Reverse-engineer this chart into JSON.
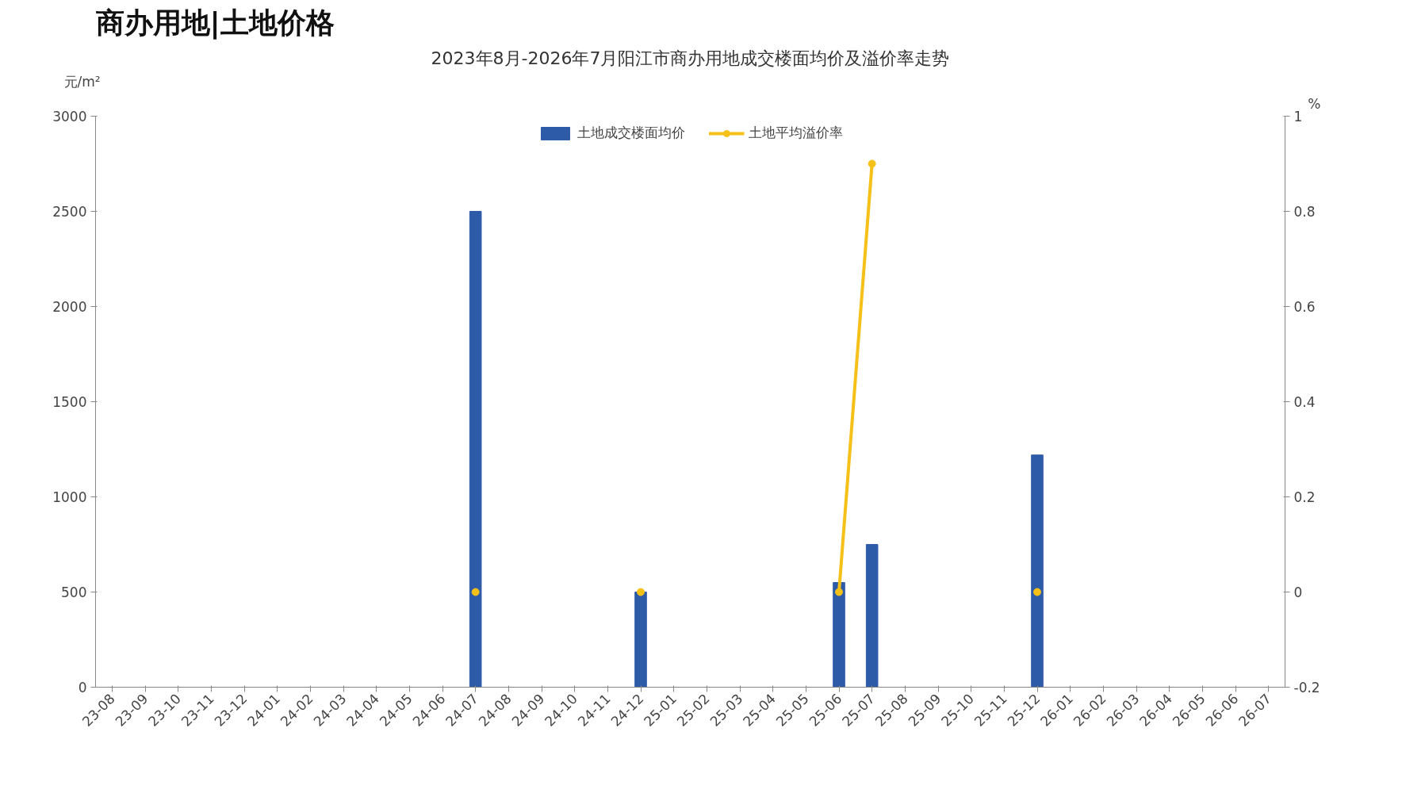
{
  "chart_data": {
    "type": "bar",
    "title": "商办用地|土地价格",
    "subtitle": "2023年8月-2026年7月阳江市商办用地成交楼面均价及溢价率走势",
    "ylabel": "元/m²",
    "y2label": "%",
    "categories": [
      "23-08",
      "23-09",
      "23-10",
      "23-11",
      "23-12",
      "24-01",
      "24-02",
      "24-03",
      "24-04",
      "24-05",
      "24-06",
      "24-07",
      "24-08",
      "24-09",
      "24-10",
      "24-11",
      "24-12",
      "25-01",
      "25-02",
      "25-03",
      "25-04",
      "25-05",
      "25-06",
      "25-07",
      "25-08",
      "25-09",
      "25-10",
      "25-11",
      "25-12",
      "26-01",
      "26-02",
      "26-03",
      "26-04",
      "26-05",
      "26-06",
      "26-07"
    ],
    "series": [
      {
        "name": "土地成交楼面均价",
        "color": "#2e5ba8",
        "values": [
          null,
          null,
          null,
          null,
          null,
          null,
          null,
          null,
          null,
          null,
          null,
          2500,
          null,
          null,
          null,
          null,
          500,
          null,
          null,
          null,
          null,
          null,
          550,
          750,
          null,
          null,
          null,
          null,
          1220,
          null,
          null,
          null,
          null,
          null,
          null,
          null
        ]
      },
      {
        "name": "土地平均溢价率",
        "type": "line",
        "axis": "y2",
        "color": "#f5c118",
        "marker": "circle",
        "values": [
          null,
          null,
          null,
          null,
          null,
          null,
          null,
          null,
          null,
          null,
          null,
          0,
          null,
          null,
          null,
          null,
          0,
          null,
          null,
          null,
          null,
          null,
          0,
          0.9,
          null,
          null,
          null,
          null,
          0,
          null,
          null,
          null,
          null,
          null,
          null,
          null
        ]
      }
    ],
    "ylim": [
      0,
      3000
    ],
    "yticks": [
      0,
      500,
      1000,
      1500,
      2000,
      2500,
      3000
    ],
    "y2lim": [
      -0.2,
      1
    ],
    "y2ticks": [
      {
        "value": -0.2,
        "label": "-0.2"
      },
      0,
      {
        "value": 0.2,
        "label": "0.2"
      },
      {
        "value": 0.4,
        "label": "0.4"
      },
      {
        "value": 0.6,
        "label": "0.6"
      },
      {
        "value": 0.8,
        "label": "0.8"
      },
      1
    ],
    "grid": false,
    "legend": "top"
  }
}
